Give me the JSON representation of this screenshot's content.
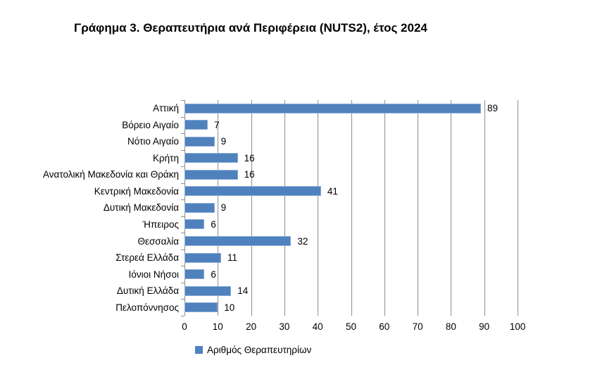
{
  "title": "Γράφημα 3. Θεραπευτήρια ανά Περιφέρεια (NUTS2), έτος 2024",
  "legend": {
    "label": "Αριθμός Θεραπευτηρίων",
    "swatch_color": "#4F81BD"
  },
  "colors": {
    "bar": "#4F81BD",
    "gridline": "#8E8E8E",
    "axis": "#8E8E8E",
    "text": "#000000"
  },
  "chart_data": {
    "type": "bar",
    "orientation": "horizontal",
    "title": "Γράφημα 3. Θεραπευτήρια ανά Περιφέρεια (NUTS2), έτος 2024",
    "series_name": "Αριθμός Θεραπευτηρίων",
    "categories": [
      "Αττική",
      "Βόρειο Αιγαίο",
      "Νότιο Αιγαίο",
      "Κρήτη",
      "Ανατολική Μακεδονία και Θράκη",
      "Κεντρική Μακεδονία",
      "Δυτική Μακεδονία",
      "Ήπειρος",
      "Θεσσαλία",
      "Στερεά Ελλάδα",
      "Ιόνιοι Νήσοι",
      "Δυτική Ελλάδα",
      "Πελοπόννησος"
    ],
    "values": [
      89,
      7,
      9,
      16,
      16,
      41,
      9,
      6,
      32,
      11,
      6,
      14,
      10
    ],
    "data_labels_shown": true,
    "xlim": [
      0,
      100
    ],
    "x_ticks": [
      0,
      10,
      20,
      30,
      40,
      50,
      60,
      70,
      80,
      90,
      100
    ],
    "grid": "vertical",
    "legend_position": "bottom"
  }
}
